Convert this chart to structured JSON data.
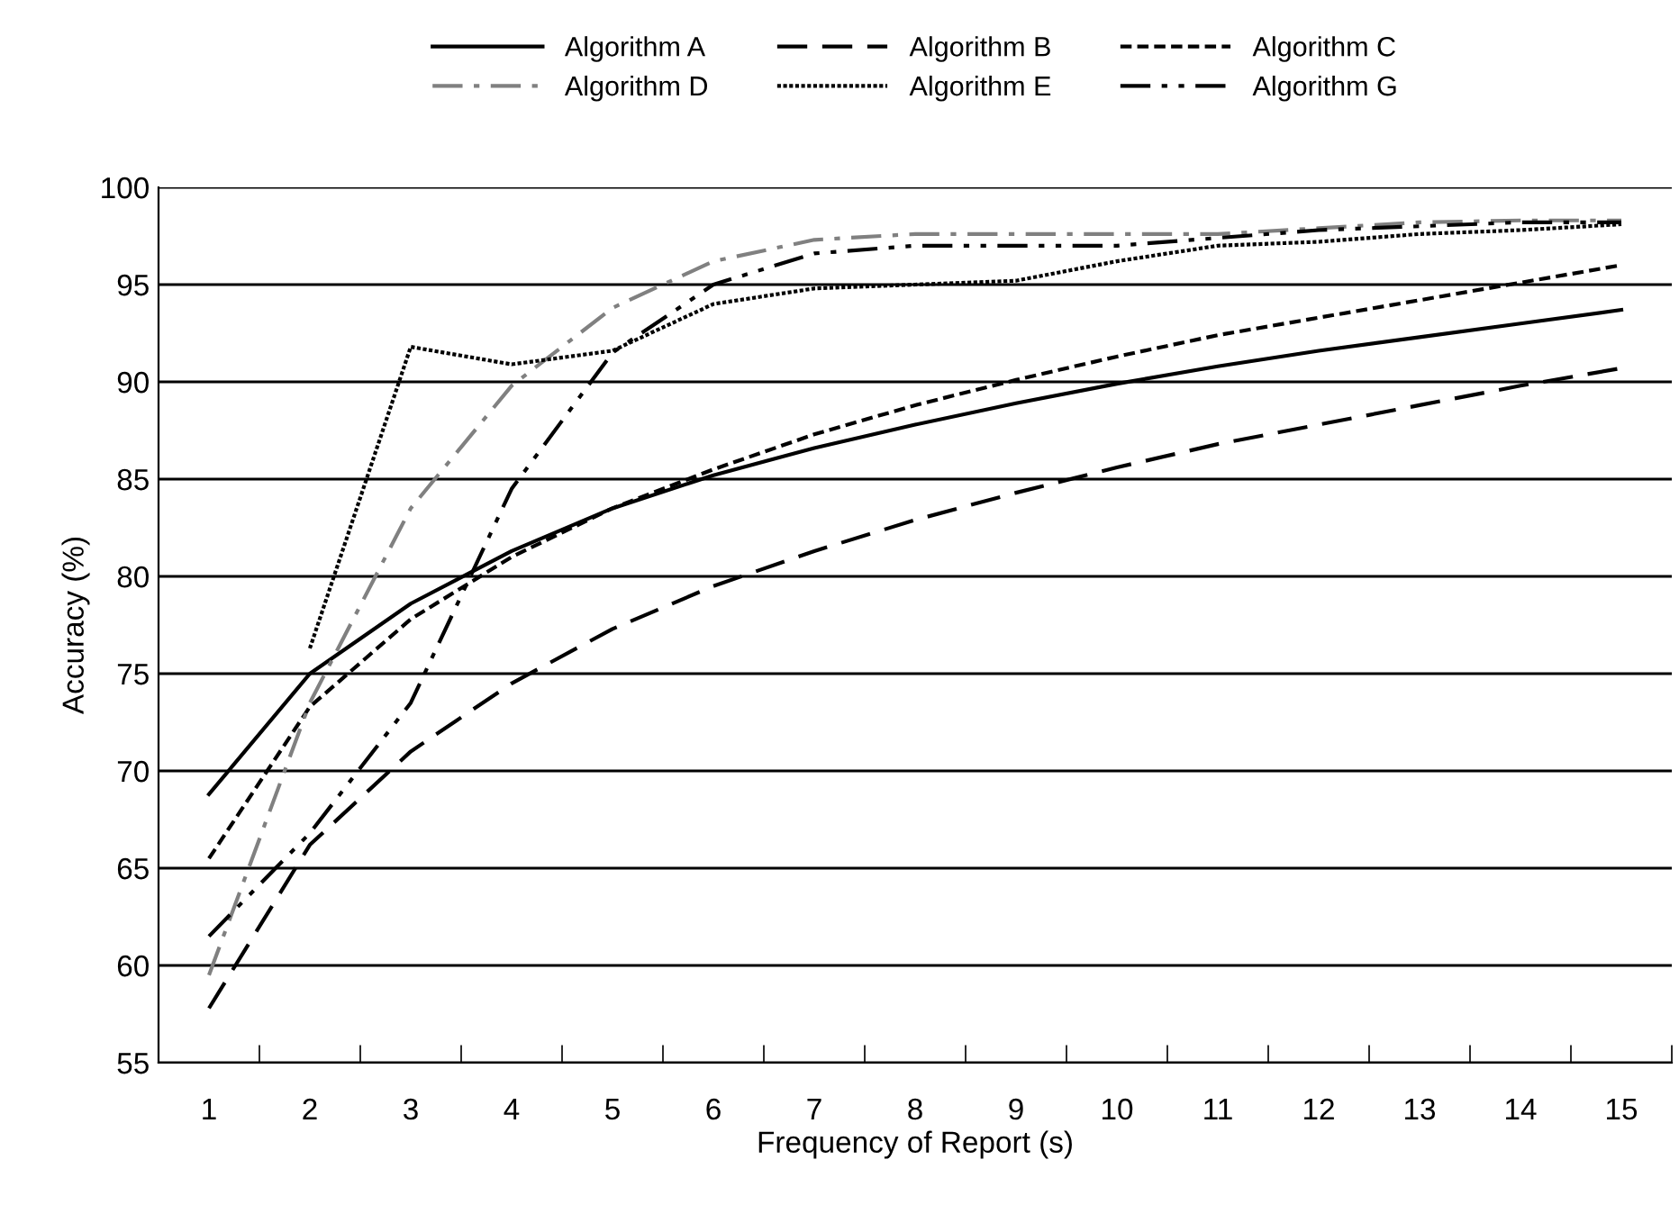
{
  "chart_data": {
    "type": "line",
    "xlabel": "Frequency of Report (s)",
    "ylabel": "Accuracy (%)",
    "categories": [
      "1",
      "2",
      "3",
      "4",
      "5",
      "6",
      "7",
      "8",
      "9",
      "10",
      "11",
      "12",
      "13",
      "14",
      "15"
    ],
    "ylim": [
      55,
      100
    ],
    "yticks": [
      55,
      60,
      65,
      70,
      75,
      80,
      85,
      90,
      95,
      100
    ],
    "grid": "y",
    "legend": "top",
    "marker": "none",
    "series": [
      {
        "name": "Algorithm A",
        "color": "#000000",
        "line_style": "solid",
        "values": [
          68.8,
          75.0,
          78.6,
          81.3,
          83.5,
          85.2,
          86.6,
          87.8,
          88.9,
          89.9,
          90.8,
          91.6,
          92.3,
          93.0,
          93.7
        ]
      },
      {
        "name": "Algorithm B",
        "color": "#000000",
        "line_style": "dashed",
        "values": [
          57.8,
          66.2,
          71.0,
          74.5,
          77.3,
          79.5,
          81.3,
          82.9,
          84.3,
          85.6,
          86.8,
          87.8,
          88.8,
          89.8,
          90.7
        ]
      },
      {
        "name": "Algorithm C",
        "color": "#000000",
        "line_style": "dotted",
        "values": [
          65.5,
          73.3,
          77.8,
          81.0,
          83.5,
          85.5,
          87.3,
          88.8,
          90.1,
          91.3,
          92.4,
          93.3,
          94.2,
          95.1,
          96.0
        ]
      },
      {
        "name": "Algorithm D",
        "color": "#808080",
        "line_style": "dashdot",
        "values": [
          59.5,
          73.5,
          83.5,
          89.8,
          93.8,
          96.2,
          97.3,
          97.6,
          97.6,
          97.6,
          97.6,
          97.9,
          98.2,
          98.3,
          98.3
        ]
      },
      {
        "name": "Algorithm E",
        "color": "#000000",
        "line_style": "densedotted",
        "values": [
          null,
          76.3,
          91.8,
          90.9,
          91.6,
          94.0,
          94.8,
          95.0,
          95.2,
          96.2,
          97.0,
          97.2,
          97.6,
          97.8,
          98.1
        ]
      },
      {
        "name": "Algorithm G",
        "color": "#000000",
        "line_style": "dashdotdot",
        "values": [
          61.5,
          66.8,
          73.5,
          84.5,
          91.5,
          95.0,
          96.6,
          97.0,
          97.0,
          97.0,
          97.4,
          97.8,
          98.0,
          98.2,
          98.2
        ]
      }
    ]
  }
}
